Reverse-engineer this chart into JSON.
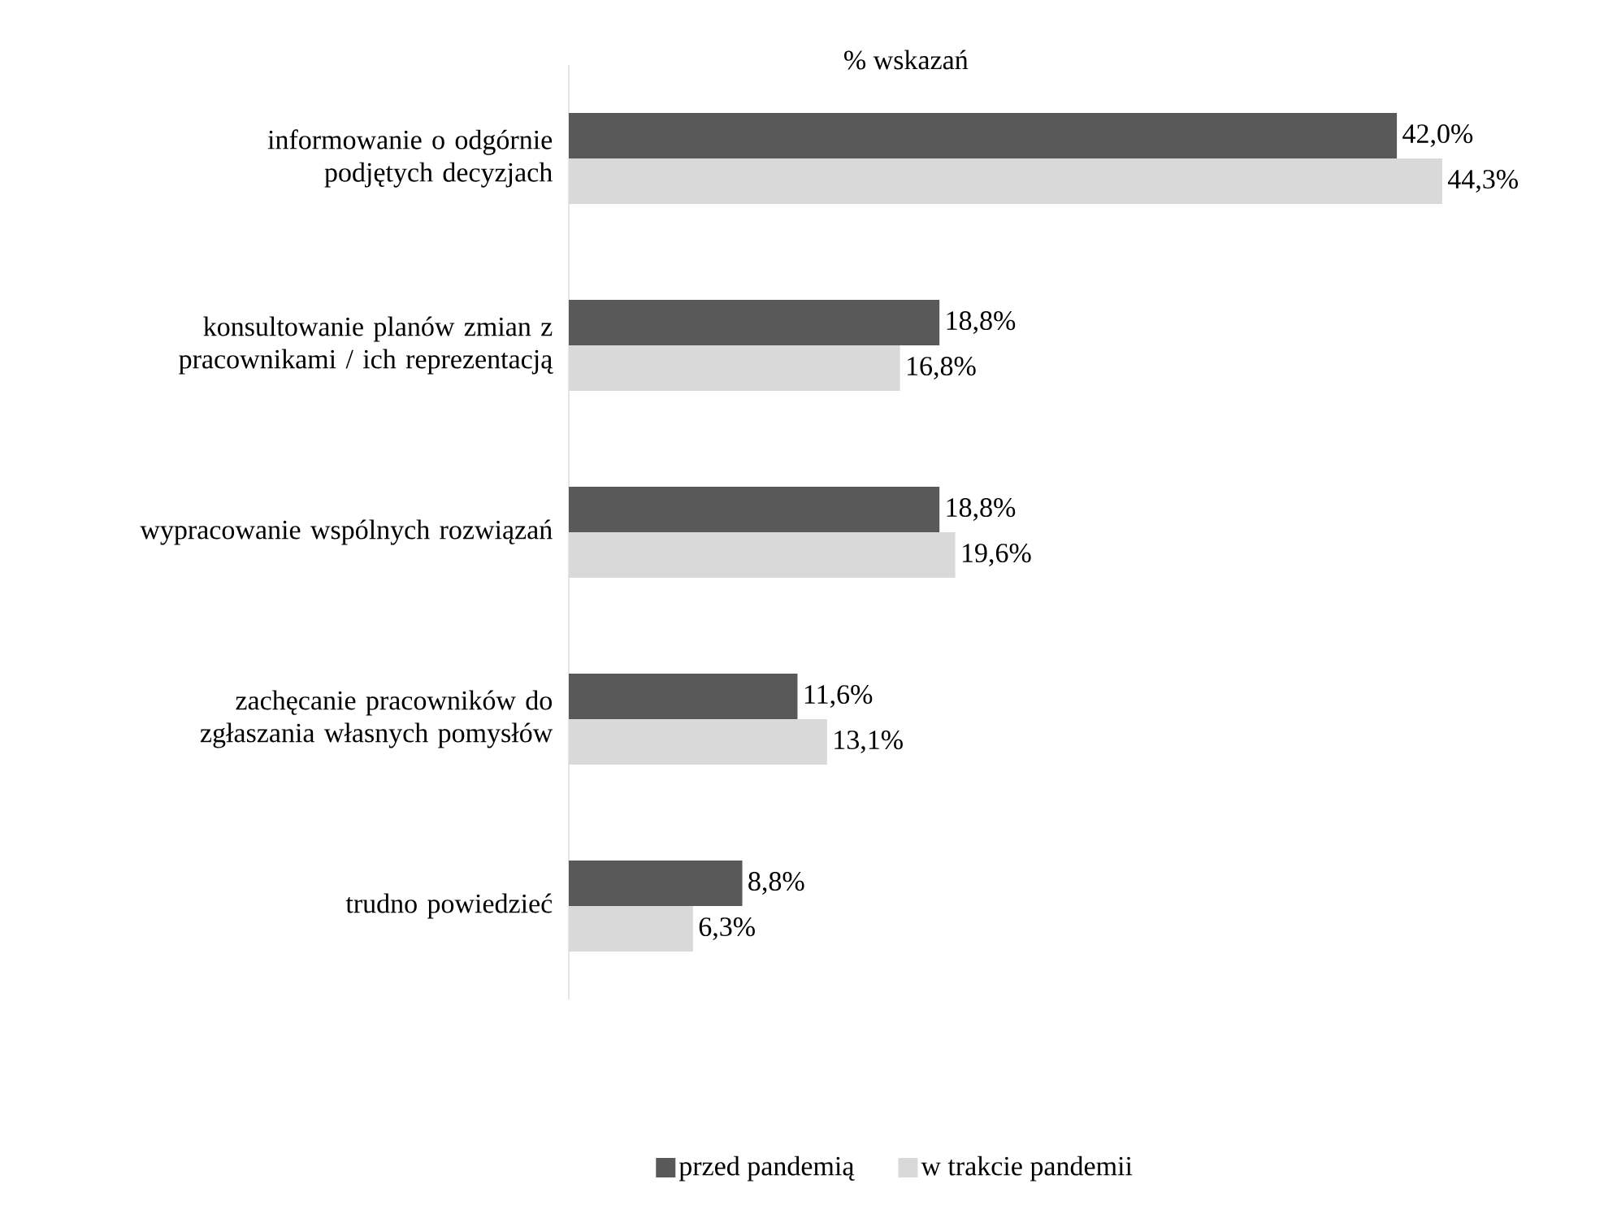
{
  "chart_data": {
    "type": "bar",
    "orientation": "horizontal",
    "xlabel": "% wskazań",
    "categories": [
      "informowanie o odgórnie podjętych decyzjach",
      "konsultowanie planów zmian z pracownikami / ich reprezentacją",
      "wypracowanie wspólnych rozwiązań",
      "zachęcanie pracowników do zgłaszania własnych pomysłów",
      "trudno powiedzieć"
    ],
    "series": [
      {
        "name": "przed pandemią",
        "color": "#595959",
        "values": [
          42.0,
          18.8,
          18.8,
          11.6,
          8.8
        ],
        "value_labels": [
          "42,0%",
          "18,8%",
          "18,8%",
          "11,6%",
          "8,8%"
        ]
      },
      {
        "name": "w trakcie pandemii",
        "color": "#d9d9d9",
        "values": [
          44.3,
          16.8,
          19.6,
          13.1,
          6.3
        ],
        "value_labels": [
          "44,3%",
          "16,8%",
          "19,6%",
          "13,1%",
          "6,3%"
        ]
      }
    ],
    "legend": "bottom",
    "tick_labels": "y"
  }
}
